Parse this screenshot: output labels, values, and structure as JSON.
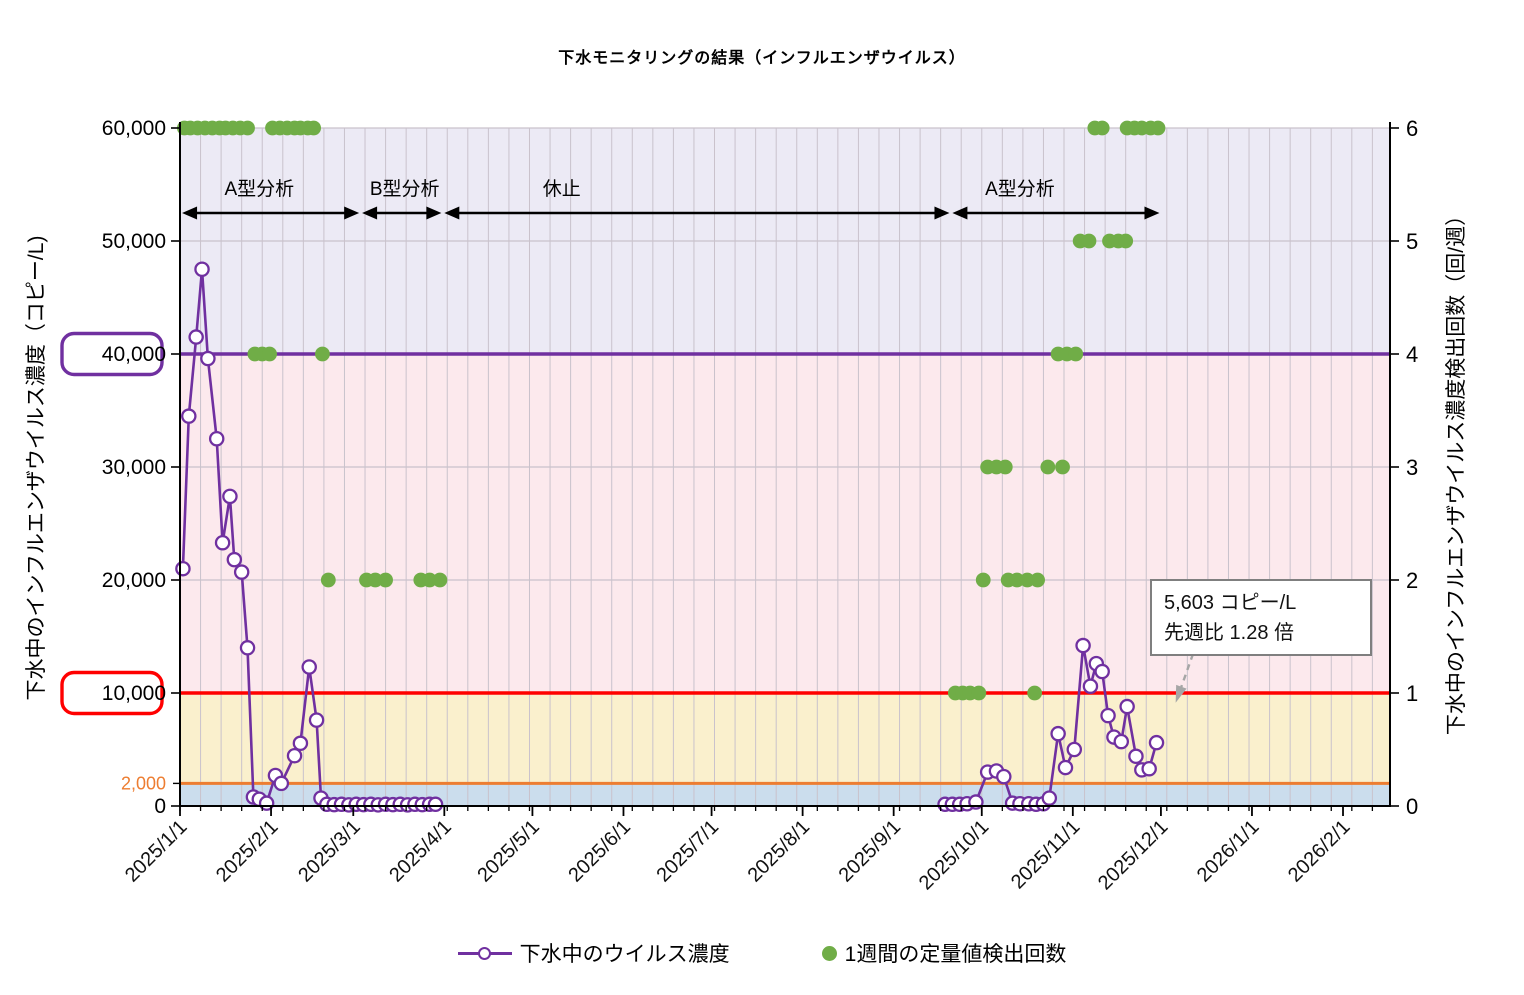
{
  "chart_data": {
    "type": "line",
    "title": "下水モニタリングの結果（インフルエンザウイルス）",
    "x_axis": {
      "range_days": [
        0,
        412
      ],
      "gridline_interval_days": 7,
      "months": [
        {
          "label": "2025/1/1",
          "day": 0
        },
        {
          "label": "2025/2/1",
          "day": 31
        },
        {
          "label": "2025/3/1",
          "day": 59
        },
        {
          "label": "2025/4/1",
          "day": 90
        },
        {
          "label": "2025/5/1",
          "day": 120
        },
        {
          "label": "2025/6/1",
          "day": 151
        },
        {
          "label": "2025/7/1",
          "day": 181
        },
        {
          "label": "2025/8/1",
          "day": 212
        },
        {
          "label": "2025/9/1",
          "day": 243
        },
        {
          "label": "2025/10/1",
          "day": 273
        },
        {
          "label": "2025/11/1",
          "day": 304
        },
        {
          "label": "2025/12/1",
          "day": 334
        },
        {
          "label": "2026/1/1",
          "day": 365
        },
        {
          "label": "2026/2/1",
          "day": 396
        }
      ]
    },
    "y_left": {
      "title": "下水中のインフルエンザウイルス濃度（コピー/L)",
      "range": [
        0,
        60000
      ],
      "ticks": [
        {
          "value": 0,
          "label": "0"
        },
        {
          "value": 10000,
          "label": "10,000",
          "box_color": "#FF0000"
        },
        {
          "value": 20000,
          "label": "20,000"
        },
        {
          "value": 30000,
          "label": "30,000"
        },
        {
          "value": 40000,
          "label": "40,000",
          "box_color": "#7030A0"
        },
        {
          "value": 50000,
          "label": "50,000"
        },
        {
          "value": 60000,
          "label": "60,000"
        }
      ],
      "extra_tick": {
        "value": 2000,
        "label": "2,000",
        "color": "#ED7D31"
      }
    },
    "y_right": {
      "title": "下水中のインフルエンザウイルス濃度検出回数（回/週）",
      "range": [
        0,
        6
      ],
      "ticks": [
        0,
        1,
        2,
        3,
        4,
        5,
        6
      ]
    },
    "bands": [
      {
        "from": 0,
        "to": 2000,
        "color": "#cbdded"
      },
      {
        "from": 2000,
        "to": 10000,
        "color": "#faf0cd"
      },
      {
        "from": 10000,
        "to": 40000,
        "color": "#fce9ed"
      },
      {
        "from": 40000,
        "to": 60000,
        "color": "#eceaf5"
      }
    ],
    "gridlines_h_values": [
      20000,
      30000,
      50000,
      60000
    ],
    "ref_lines": [
      {
        "value": 2000,
        "color": "#ED7D31",
        "width": 3
      },
      {
        "value": 10000,
        "color": "#FF0000",
        "width": 3.5
      },
      {
        "value": 40000,
        "color": "#7030A0",
        "width": 3.5
      }
    ],
    "periods": [
      {
        "label": "A型分析",
        "from_day": 0.7,
        "to_day": 61,
        "label_day": 27
      },
      {
        "label": "B型分析",
        "from_day": 62,
        "to_day": 89,
        "label_day": 76.5
      },
      {
        "label": "休止",
        "from_day": 90,
        "to_day": 262,
        "label_day": 130
      },
      {
        "label": "A型分析",
        "from_day": 263,
        "to_day": 333.5,
        "label_day": 286
      }
    ],
    "series": {
      "concentration": {
        "name": "下水中のウイルス濃度",
        "color": "#7030A0",
        "unit": "コピー/L",
        "segments": [
          [
            [
              1,
              21000
            ],
            [
              3,
              34500
            ],
            [
              5.5,
              41500
            ],
            [
              7.5,
              47500
            ],
            [
              9.5,
              39600
            ],
            [
              12.5,
              32500
            ],
            [
              14.5,
              23300
            ],
            [
              17,
              27400
            ],
            [
              18.5,
              21800
            ],
            [
              21,
              20700
            ],
            [
              23,
              14000
            ],
            [
              25,
              800
            ],
            [
              27,
              600
            ],
            [
              29.5,
              250
            ],
            [
              32.5,
              2700
            ],
            [
              34.5,
              2000
            ],
            [
              39,
              4450
            ],
            [
              41,
              5550
            ],
            [
              44,
              12300
            ],
            [
              46.5,
              7600
            ],
            [
              48,
              700
            ],
            [
              50,
              150
            ],
            [
              52.5,
              120
            ],
            [
              55,
              150
            ],
            [
              57.5,
              100
            ],
            [
              60,
              150
            ],
            [
              62.5,
              120
            ],
            [
              65,
              150
            ],
            [
              67.5,
              100
            ],
            [
              70,
              150
            ],
            [
              72.5,
              120
            ],
            [
              75,
              150
            ],
            [
              77.5,
              100
            ],
            [
              80,
              150
            ],
            [
              82.5,
              120
            ],
            [
              85,
              150
            ],
            [
              87,
              150
            ]
          ],
          [
            [
              260.5,
              150
            ],
            [
              263,
              150
            ],
            [
              265.5,
              150
            ],
            [
              268,
              200
            ],
            [
              271,
              350
            ],
            [
              275,
              3000
            ],
            [
              278,
              3100
            ],
            [
              280.5,
              2600
            ],
            [
              283.5,
              250
            ],
            [
              286,
              200
            ],
            [
              289,
              200
            ],
            [
              291.5,
              150
            ],
            [
              294,
              200
            ],
            [
              296,
              700
            ],
            [
              299,
              6400
            ],
            [
              301.5,
              3400
            ],
            [
              304.5,
              5000
            ],
            [
              307.5,
              14200
            ],
            [
              310,
              10600
            ],
            [
              312,
              12600
            ],
            [
              314,
              11900
            ],
            [
              316,
              8000
            ],
            [
              318,
              6100
            ],
            [
              320.5,
              5700
            ],
            [
              322.5,
              8800
            ],
            [
              325.5,
              4400
            ],
            [
              327.5,
              3200
            ],
            [
              330,
              3300
            ],
            [
              332.5,
              5603
            ]
          ]
        ]
      },
      "detections": {
        "name": "1週間の定量値検出回数",
        "color": "#70AD47",
        "unit": "回/週",
        "points": [
          [
            1.5,
            6
          ],
          [
            3.5,
            6
          ],
          [
            6,
            6
          ],
          [
            8.5,
            6
          ],
          [
            11,
            6
          ],
          [
            13.5,
            6
          ],
          [
            15.5,
            6
          ],
          [
            18,
            6
          ],
          [
            20.5,
            6
          ],
          [
            23,
            6
          ],
          [
            25.5,
            4
          ],
          [
            28,
            4
          ],
          [
            30.5,
            4
          ],
          [
            31.5,
            6
          ],
          [
            34,
            6
          ],
          [
            36.5,
            6
          ],
          [
            39,
            6
          ],
          [
            41,
            6
          ],
          [
            43.5,
            6
          ],
          [
            45.5,
            6
          ],
          [
            48.5,
            4
          ],
          [
            50.5,
            2
          ],
          [
            63.5,
            2
          ],
          [
            66.5,
            2
          ],
          [
            70,
            2
          ],
          [
            82,
            2
          ],
          [
            85,
            2
          ],
          [
            88.5,
            2
          ],
          [
            264,
            1
          ],
          [
            266.5,
            1
          ],
          [
            269,
            1
          ],
          [
            272,
            1
          ],
          [
            273.5,
            2
          ],
          [
            275,
            3
          ],
          [
            278,
            3
          ],
          [
            281,
            3
          ],
          [
            282,
            2
          ],
          [
            285,
            2
          ],
          [
            288.5,
            2
          ],
          [
            292,
            2
          ],
          [
            291,
            1
          ],
          [
            295.5,
            3
          ],
          [
            300.5,
            3
          ],
          [
            299,
            4
          ],
          [
            302,
            4
          ],
          [
            305,
            4
          ],
          [
            306.5,
            5
          ],
          [
            309.5,
            5
          ],
          [
            311.5,
            6
          ],
          [
            314,
            6
          ],
          [
            316.5,
            5
          ],
          [
            319.5,
            5
          ],
          [
            322,
            5
          ],
          [
            322.5,
            6
          ],
          [
            325,
            6
          ],
          [
            327.5,
            6
          ],
          [
            330.5,
            6
          ],
          [
            333,
            6
          ]
        ]
      }
    },
    "annotation": {
      "lines": [
        "5,603 コピー/L",
        "先週比  1.28 倍"
      ],
      "arrow_color": "#a6a6a6"
    },
    "legend": [
      {
        "label": "下水中のウイルス濃度",
        "marker": "line-open-circle",
        "color": "#7030A0"
      },
      {
        "label": "1週間の定量値検出回数",
        "marker": "dot",
        "color": "#70AD47"
      }
    ]
  }
}
